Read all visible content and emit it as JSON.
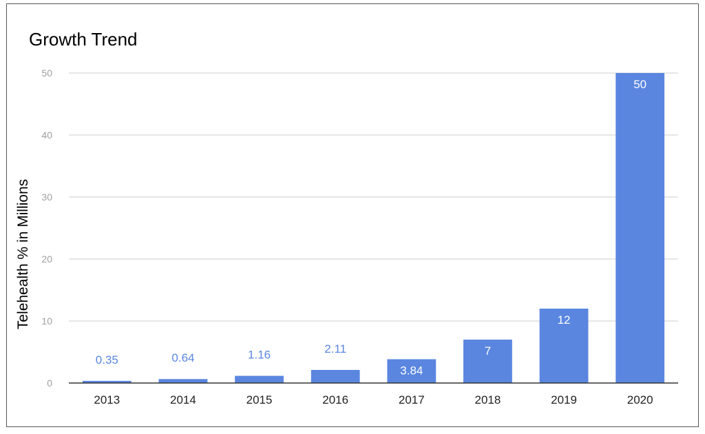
{
  "chart_data": {
    "type": "bar",
    "title": "Growth Trend",
    "xlabel": "",
    "ylabel": "Telehealth % in Millions",
    "categories": [
      "2013",
      "2014",
      "2015",
      "2016",
      "2017",
      "2018",
      "2019",
      "2020"
    ],
    "values": [
      0.35,
      0.64,
      1.16,
      2.11,
      3.84,
      7,
      12,
      50
    ],
    "data_labels": [
      "0.35",
      "0.64",
      "1.16",
      "2.11",
      "3.84",
      "7",
      "12",
      "50"
    ],
    "ylim": [
      0,
      50
    ],
    "yticks": [
      0,
      10,
      20,
      30,
      40,
      50
    ],
    "grid": true,
    "legend": "none",
    "bar_color": "#5a86e0",
    "label_color_outside": "#5a86e0",
    "label_color_inside": "#ffffff"
  }
}
